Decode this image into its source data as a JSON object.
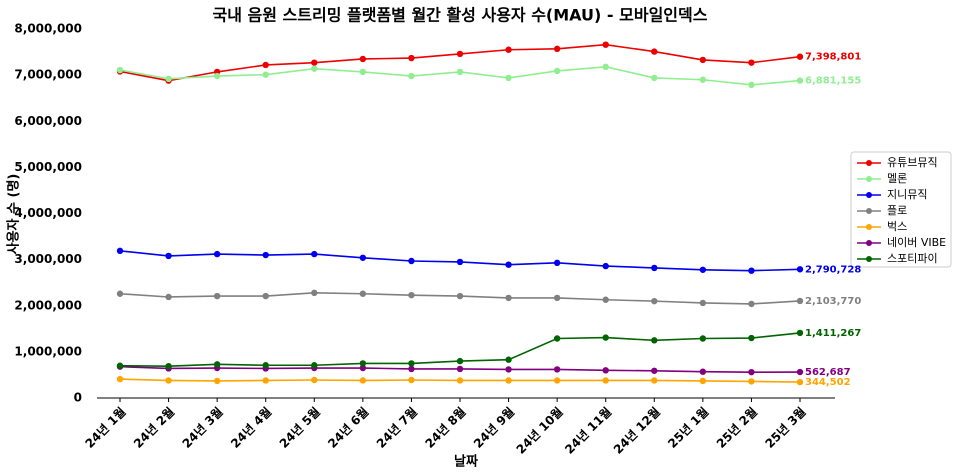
{
  "chart_data": {
    "type": "line",
    "title": "국내 음원 스트리밍 플랫폼별 월간 활성 사용자 수(MAU) - 모바일인덱스",
    "x_label": "날짜",
    "y_label": "사용자 수 (명)",
    "categories": [
      "24년 1월",
      "24년 2월",
      "24년 3월",
      "24년 4월",
      "24년 5월",
      "24년 6월",
      "24년 7월",
      "24년 8월",
      "24년 9월",
      "24년 10월",
      "24년 11월",
      "24년 12월",
      "25년 1월",
      "25년 2월",
      "25년 3월"
    ],
    "ylim": [
      0,
      8000000
    ],
    "yticks": [
      0,
      {
        "value": 1000000,
        "label": "1,000,000"
      },
      {
        "value": 2000000,
        "label": "2,000,000"
      },
      {
        "value": 3000000,
        "label": "3,000,000"
      },
      {
        "value": 4000000,
        "label": "4,000,000"
      },
      {
        "value": 5000000,
        "label": "5,000,000"
      },
      {
        "value": 6000000,
        "label": "6,000,000"
      },
      {
        "value": 7000000,
        "label": "7,000,000"
      },
      {
        "value": 8000000,
        "label": "8,000,000"
      }
    ],
    "legend": "right",
    "series": [
      {
        "name": "유튜브뮤직",
        "color": "#ee0000",
        "values": [
          7080000,
          6880000,
          7070000,
          7220000,
          7270000,
          7350000,
          7370000,
          7460000,
          7550000,
          7570000,
          7660000,
          7510000,
          7330000,
          7270000,
          7398801
        ],
        "value_labels": [
          null,
          null,
          null,
          null,
          null,
          null,
          null,
          null,
          null,
          null,
          null,
          null,
          null,
          null,
          "7,398,801"
        ]
      },
      {
        "name": "멜론",
        "color": "#90ee90",
        "values": [
          7110000,
          6920000,
          6980000,
          7010000,
          7140000,
          7070000,
          6980000,
          7070000,
          6940000,
          7090000,
          7180000,
          6940000,
          6900000,
          6790000,
          6881155
        ],
        "value_labels": [
          null,
          null,
          null,
          null,
          null,
          null,
          null,
          null,
          null,
          null,
          null,
          null,
          null,
          null,
          "6,881,155"
        ]
      },
      {
        "name": "지니뮤직",
        "color": "#0000ee",
        "values": [
          3190000,
          3080000,
          3120000,
          3100000,
          3120000,
          3040000,
          2970000,
          2950000,
          2890000,
          2930000,
          2860000,
          2820000,
          2780000,
          2760000,
          2790728
        ],
        "value_labels": [
          null,
          null,
          null,
          null,
          null,
          null,
          null,
          null,
          null,
          null,
          null,
          null,
          null,
          null,
          "2,790,728"
        ]
      },
      {
        "name": "플로",
        "color": "#808080",
        "values": [
          2260000,
          2190000,
          2210000,
          2210000,
          2280000,
          2260000,
          2230000,
          2210000,
          2170000,
          2170000,
          2130000,
          2100000,
          2060000,
          2040000,
          2103770
        ],
        "value_labels": [
          null,
          null,
          null,
          null,
          null,
          null,
          null,
          null,
          null,
          null,
          null,
          null,
          null,
          null,
          "2,103,770"
        ]
      },
      {
        "name": "벅스",
        "color": "#ffa500",
        "values": [
          410000,
          380000,
          370000,
          380000,
          390000,
          380000,
          390000,
          380000,
          380000,
          380000,
          380000,
          380000,
          370000,
          360000,
          344502
        ],
        "value_labels": [
          null,
          null,
          null,
          null,
          null,
          null,
          null,
          null,
          null,
          null,
          null,
          null,
          null,
          null,
          "344,502"
        ]
      },
      {
        "name": "네이버 VIBE",
        "color": "#800080",
        "values": [
          680000,
          640000,
          650000,
          640000,
          650000,
          650000,
          630000,
          630000,
          620000,
          620000,
          600000,
          590000,
          570000,
          560000,
          562687
        ],
        "value_labels": [
          null,
          null,
          null,
          null,
          null,
          null,
          null,
          null,
          null,
          null,
          null,
          null,
          null,
          null,
          "562,687"
        ]
      },
      {
        "name": "스포티파이",
        "color": "#006400",
        "values": [
          700000,
          690000,
          730000,
          710000,
          710000,
          750000,
          750000,
          800000,
          830000,
          1290000,
          1310000,
          1250000,
          1290000,
          1300000,
          1411267
        ],
        "value_labels": [
          null,
          null,
          null,
          null,
          null,
          null,
          null,
          null,
          null,
          null,
          null,
          null,
          null,
          null,
          "1,411,267"
        ]
      }
    ]
  }
}
